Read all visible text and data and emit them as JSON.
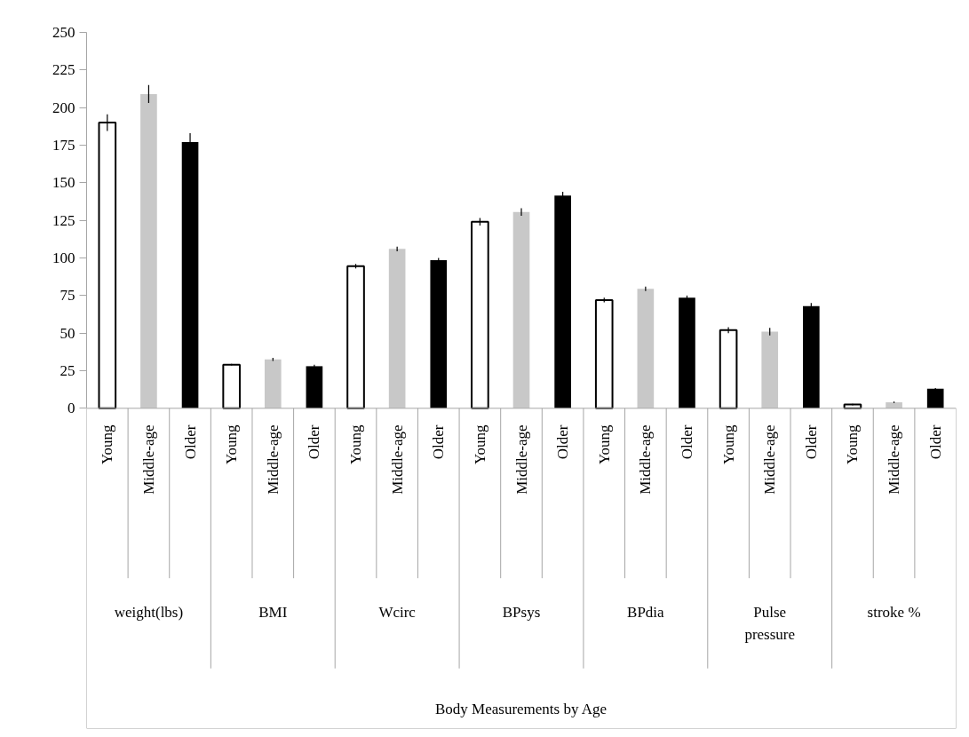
{
  "chart_data": {
    "type": "bar",
    "categories": [
      "Young",
      "Middle-age",
      "Older",
      "Young",
      "Middle-age",
      "Older",
      "Young",
      "Middle-age",
      "Older",
      "Young",
      "Middle-age",
      "Older",
      "Young",
      "Middle-age",
      "Older",
      "Young",
      "Middle-age",
      "Older",
      "Young",
      "Middle-age",
      "Older"
    ],
    "values": [
      190,
      209,
      177,
      29,
      32.5,
      28,
      94.5,
      106,
      98.5,
      124,
      130.5,
      141.5,
      72,
      79.5,
      73.5,
      52,
      51,
      68,
      2.5,
      4,
      13
    ],
    "errors": [
      5.5,
      6,
      6,
      0.5,
      1,
      1,
      1.5,
      1.5,
      1.5,
      2.5,
      2.5,
      2.5,
      1.5,
      1.5,
      1.5,
      2,
      2.5,
      2,
      0.5,
      0.5,
      0.5
    ],
    "colors": [
      "#ffffff",
      "#c8c8c8",
      "#000000",
      "#ffffff",
      "#c8c8c8",
      "#000000",
      "#ffffff",
      "#c8c8c8",
      "#000000",
      "#ffffff",
      "#c8c8c8",
      "#000000",
      "#ffffff",
      "#c8c8c8",
      "#000000",
      "#ffffff",
      "#c8c8c8",
      "#000000",
      "#ffffff",
      "#c8c8c8",
      "#000000"
    ],
    "annotations": [
      "weight(lbs)",
      "BMI",
      "Wcirc",
      "BPsys",
      "BPdia",
      "Pulse pressure",
      "stroke %",
      "Body Measurements by Age"
    ],
    "ylim": [
      0,
      250
    ],
    "yticks": [
      0,
      25,
      50,
      75,
      100,
      125,
      150,
      175,
      200,
      225,
      250
    ],
    "grid": false
  }
}
